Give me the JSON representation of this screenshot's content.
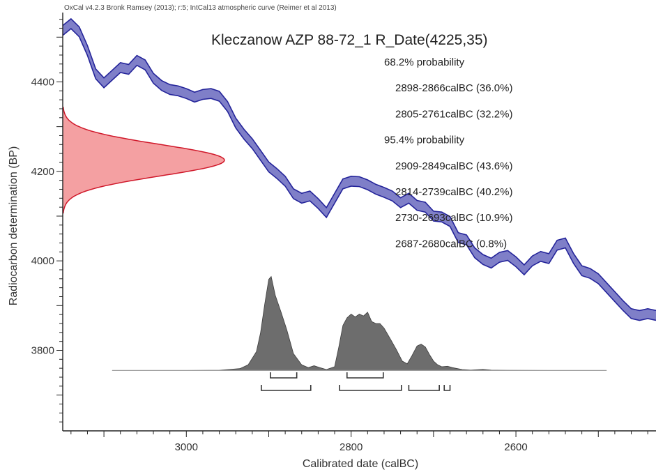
{
  "chart_data": {
    "type": "area",
    "header": "OxCal v4.2.3 Bronk Ramsey (2013); r:5; IntCal13 atmospheric curve (Reimer et al 2013)",
    "title": "Kleczanow AZP 88-72_1 R_Date(4225,35)",
    "xlabel": "Calibrated date (calBC)",
    "ylabel": "Radiocarbon determination (BP)",
    "xlim": [
      3150,
      2430
    ],
    "ylim": [
      3620,
      4555
    ],
    "x_ticks": [
      {
        "value": 3000,
        "label": "3000"
      },
      {
        "value": 2800,
        "label": "2800"
      },
      {
        "value": 2600,
        "label": "2600"
      }
    ],
    "y_ticks": [
      {
        "value": 3800,
        "label": "3800"
      },
      {
        "value": 4000,
        "label": "4000"
      },
      {
        "value": 4200,
        "label": "4200"
      },
      {
        "value": 4400,
        "label": "4400"
      }
    ],
    "annotations": [
      {
        "label": "68.2% probability",
        "indent": 0
      },
      {
        "label": "2898-2866calBC (36.0%)",
        "indent": 1
      },
      {
        "label": "2805-2761calBC (32.2%)",
        "indent": 1
      },
      {
        "label": "95.4% probability",
        "indent": 0
      },
      {
        "label": "2909-2849calBC (43.6%)",
        "indent": 1
      },
      {
        "label": "2814-2739calBC (40.2%)",
        "indent": 1
      },
      {
        "label": "2730-2693calBC (10.9%)",
        "indent": 1
      },
      {
        "label": "2687-2680calBC (0.8%)",
        "indent": 1
      }
    ],
    "calibration_curve": {
      "color": "#7f7fc8",
      "edge_color": "#24249a",
      "points": [
        [
          3150,
          4515
        ],
        [
          3140,
          4530
        ],
        [
          3130,
          4512
        ],
        [
          3120,
          4470
        ],
        [
          3110,
          4418
        ],
        [
          3100,
          4398
        ],
        [
          3090,
          4415
        ],
        [
          3080,
          4432
        ],
        [
          3070,
          4428
        ],
        [
          3060,
          4448
        ],
        [
          3050,
          4438
        ],
        [
          3040,
          4408
        ],
        [
          3030,
          4392
        ],
        [
          3020,
          4383
        ],
        [
          3010,
          4380
        ],
        [
          3000,
          4374
        ],
        [
          2990,
          4366
        ],
        [
          2980,
          4372
        ],
        [
          2970,
          4374
        ],
        [
          2960,
          4368
        ],
        [
          2950,
          4345
        ],
        [
          2940,
          4308
        ],
        [
          2930,
          4283
        ],
        [
          2920,
          4262
        ],
        [
          2910,
          4236
        ],
        [
          2900,
          4210
        ],
        [
          2890,
          4195
        ],
        [
          2880,
          4178
        ],
        [
          2870,
          4150
        ],
        [
          2860,
          4140
        ],
        [
          2850,
          4145
        ],
        [
          2840,
          4128
        ],
        [
          2830,
          4108
        ],
        [
          2820,
          4140
        ],
        [
          2810,
          4172
        ],
        [
          2800,
          4178
        ],
        [
          2790,
          4177
        ],
        [
          2780,
          4170
        ],
        [
          2770,
          4160
        ],
        [
          2760,
          4153
        ],
        [
          2750,
          4145
        ],
        [
          2740,
          4130
        ],
        [
          2730,
          4140
        ],
        [
          2720,
          4124
        ],
        [
          2710,
          4120
        ],
        [
          2700,
          4100
        ],
        [
          2690,
          4098
        ],
        [
          2680,
          4088
        ],
        [
          2670,
          4052
        ],
        [
          2660,
          4047
        ],
        [
          2650,
          4018
        ],
        [
          2640,
          4003
        ],
        [
          2630,
          3995
        ],
        [
          2620,
          4008
        ],
        [
          2610,
          4012
        ],
        [
          2600,
          3998
        ],
        [
          2590,
          3980
        ],
        [
          2580,
          4000
        ],
        [
          2570,
          4010
        ],
        [
          2560,
          4005
        ],
        [
          2550,
          4035
        ],
        [
          2540,
          4040
        ],
        [
          2530,
          4005
        ],
        [
          2520,
          3978
        ],
        [
          2510,
          3972
        ],
        [
          2500,
          3960
        ],
        [
          2490,
          3940
        ],
        [
          2480,
          3920
        ],
        [
          2470,
          3900
        ],
        [
          2460,
          3882
        ],
        [
          2450,
          3878
        ],
        [
          2440,
          3882
        ],
        [
          2430,
          3878
        ]
      ],
      "halfwidth": 11
    },
    "radiocarbon_date": {
      "mean": 4225,
      "sigma": 35,
      "fill": "#f4a0a2",
      "edge": "#d0182a"
    },
    "calibrated_distribution": {
      "fill": "#6d6d6d",
      "edge": "#3d3d3d",
      "baseline_color": "#9e9e9e",
      "points": [
        [
          3090,
          0
        ],
        [
          3000,
          0
        ],
        [
          2960,
          0.003
        ],
        [
          2935,
          0.02
        ],
        [
          2925,
          0.06
        ],
        [
          2915,
          0.2
        ],
        [
          2910,
          0.4
        ],
        [
          2905,
          0.7
        ],
        [
          2900,
          0.97
        ],
        [
          2897,
          1.0
        ],
        [
          2892,
          0.8
        ],
        [
          2885,
          0.62
        ],
        [
          2878,
          0.43
        ],
        [
          2870,
          0.18
        ],
        [
          2860,
          0.06
        ],
        [
          2852,
          0.03
        ],
        [
          2845,
          0.05
        ],
        [
          2838,
          0.03
        ],
        [
          2830,
          0.01
        ],
        [
          2820,
          0.04
        ],
        [
          2815,
          0.25
        ],
        [
          2810,
          0.48
        ],
        [
          2805,
          0.56
        ],
        [
          2800,
          0.6
        ],
        [
          2795,
          0.57
        ],
        [
          2790,
          0.6
        ],
        [
          2785,
          0.58
        ],
        [
          2780,
          0.62
        ],
        [
          2775,
          0.52
        ],
        [
          2770,
          0.5
        ],
        [
          2765,
          0.5
        ],
        [
          2760,
          0.45
        ],
        [
          2752,
          0.33
        ],
        [
          2745,
          0.22
        ],
        [
          2738,
          0.1
        ],
        [
          2732,
          0.07
        ],
        [
          2726,
          0.16
        ],
        [
          2720,
          0.26
        ],
        [
          2715,
          0.28
        ],
        [
          2710,
          0.25
        ],
        [
          2705,
          0.17
        ],
        [
          2700,
          0.1
        ],
        [
          2695,
          0.06
        ],
        [
          2690,
          0.04
        ],
        [
          2683,
          0.045
        ],
        [
          2677,
          0.03
        ],
        [
          2665,
          0.01
        ],
        [
          2655,
          0.004
        ],
        [
          2640,
          0.012
        ],
        [
          2630,
          0.004
        ],
        [
          2610,
          0.001
        ],
        [
          2560,
          0
        ],
        [
          2490,
          0
        ]
      ],
      "peak_height_bp": 210,
      "baseline_bp": 3755
    },
    "range_brackets": [
      {
        "level": "68.2%",
        "from": 2898,
        "to": 2866
      },
      {
        "level": "68.2%",
        "from": 2805,
        "to": 2761
      },
      {
        "level": "95.4%",
        "from": 2909,
        "to": 2849
      },
      {
        "level": "95.4%",
        "from": 2814,
        "to": 2739
      },
      {
        "level": "95.4%",
        "from": 2730,
        "to": 2693
      },
      {
        "level": "95.4%",
        "from": 2687,
        "to": 2680
      }
    ]
  }
}
